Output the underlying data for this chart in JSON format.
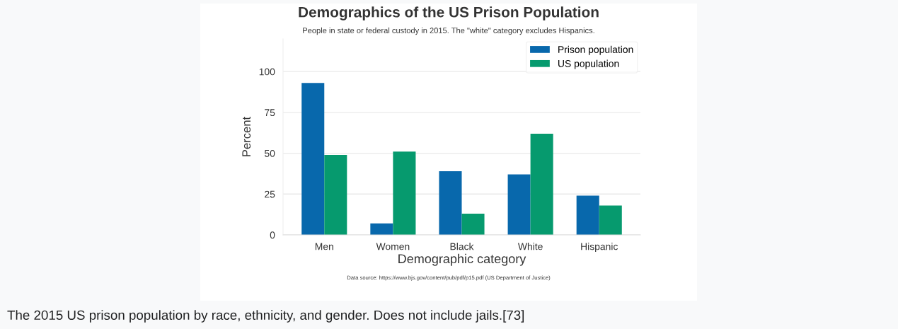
{
  "chart_data": {
    "type": "bar",
    "title": "Demographics of the US Prison Population",
    "subtitle": "People in state or federal custody in 2015. The \"white\" category excludes Hispanics.",
    "xlabel": "Demographic category",
    "ylabel": "Percent",
    "categories": [
      "Men",
      "Women",
      "Black",
      "White",
      "Hispanic"
    ],
    "series": [
      {
        "name": "Prison population",
        "color": "#0868ac",
        "values": [
          93,
          7,
          39,
          37,
          24
        ]
      },
      {
        "name": "US population",
        "color": "#069a6e",
        "values": [
          49,
          51,
          13,
          62,
          18
        ]
      }
    ],
    "ylim": [
      0,
      120
    ],
    "yticks": [
      0,
      25,
      50,
      75,
      100
    ],
    "grid": "y",
    "legend": "top right",
    "annotations": [
      "Data source: https://www.bjs.gov/content/pub/pdf/p15.pdf (US Department of Justice)",
      "The 2015 US prison population by race, ethnicity, and gender. Does not include jails.[73]"
    ]
  }
}
